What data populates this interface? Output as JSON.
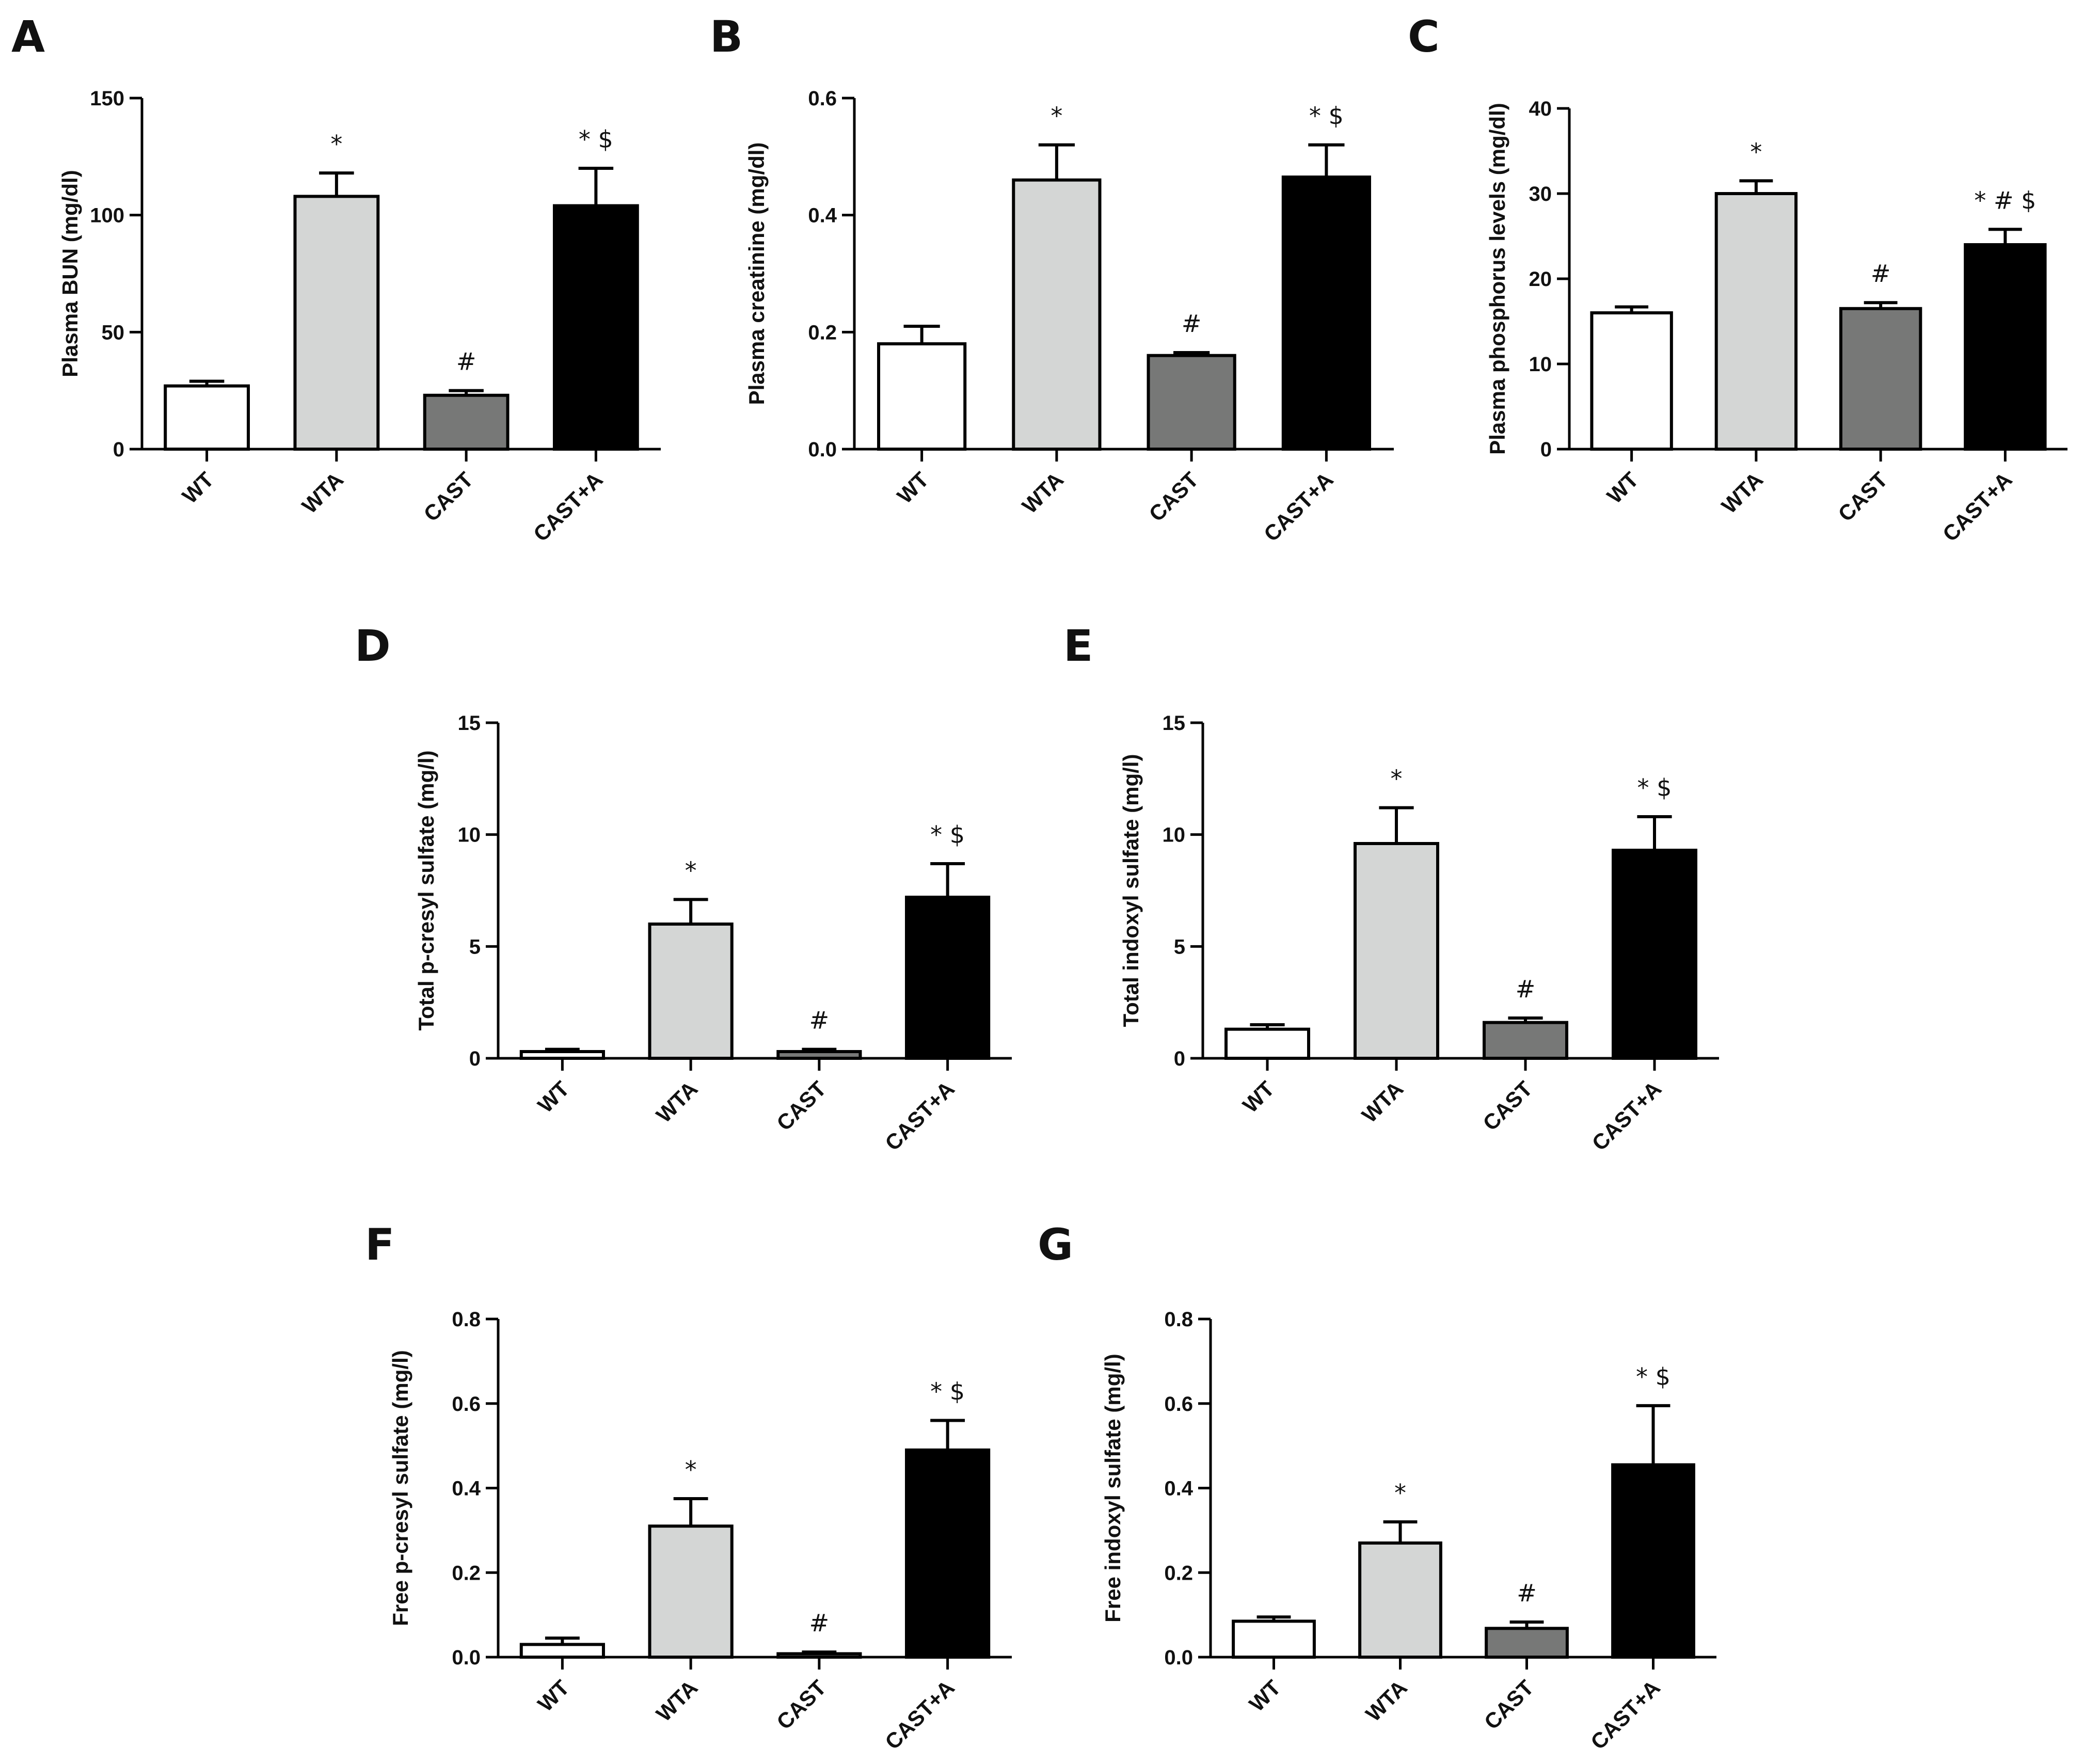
{
  "figure": {
    "background": "#ffffff"
  },
  "categories": [
    "WT",
    "WTA",
    "CAST",
    "CAST+A"
  ],
  "bar_colors": [
    "#ffffff",
    "#d4d6d5",
    "#777877",
    "#000000"
  ],
  "chart_data": [
    {
      "type": "bar",
      "panel": "A",
      "title": "",
      "xlabel": "",
      "ylabel": "Plasma BUN (mg/dl)",
      "ylim": [
        0,
        150
      ],
      "ytick_labels": [
        "0",
        "50",
        "100",
        "150"
      ],
      "categories": [
        "WT",
        "WTA",
        "CAST",
        "CAST+A"
      ],
      "values": [
        27,
        108,
        23,
        104
      ],
      "errors": [
        2,
        10,
        2,
        16
      ],
      "annotations": [
        "",
        "*",
        "#",
        "* $"
      ]
    },
    {
      "type": "bar",
      "panel": "B",
      "title": "",
      "xlabel": "",
      "ylabel": "Plasma creatinine (mg/dl)",
      "ylim": [
        0,
        0.6
      ],
      "ytick_labels": [
        "0.0",
        "0.2",
        "0.4",
        "0.6"
      ],
      "categories": [
        "WT",
        "WTA",
        "CAST",
        "CAST+A"
      ],
      "values": [
        0.18,
        0.46,
        0.16,
        0.465
      ],
      "errors": [
        0.03,
        0.06,
        0.005,
        0.055
      ],
      "annotations": [
        "",
        "*",
        "#",
        "* $"
      ]
    },
    {
      "type": "bar",
      "panel": "C",
      "title": "",
      "xlabel": "",
      "ylabel": "Plasma phosphorus levels (mg/dl)",
      "ylim": [
        0,
        40
      ],
      "ytick_labels": [
        "0",
        "10",
        "20",
        "30",
        "40"
      ],
      "categories": [
        "WT",
        "WTA",
        "CAST",
        "CAST+A"
      ],
      "values": [
        16,
        30,
        16.5,
        24
      ],
      "errors": [
        0.7,
        1.5,
        0.7,
        1.8
      ],
      "annotations": [
        "",
        "*",
        "#",
        "* # $"
      ]
    },
    {
      "type": "bar",
      "panel": "D",
      "title": "",
      "xlabel": "",
      "ylabel": "Total p-cresyl sulfate (mg/l)",
      "ylim": [
        0,
        15
      ],
      "ytick_labels": [
        "0",
        "5",
        "10",
        "15"
      ],
      "categories": [
        "WT",
        "WTA",
        "CAST",
        "CAST+A"
      ],
      "values": [
        0.3,
        6.0,
        0.3,
        7.2
      ],
      "errors": [
        0.1,
        1.1,
        0.1,
        1.5
      ],
      "annotations": [
        "",
        "*",
        "#",
        "* $"
      ]
    },
    {
      "type": "bar",
      "panel": "E",
      "title": "",
      "xlabel": "",
      "ylabel": "Total indoxyl sulfate (mg/l)",
      "ylim": [
        0,
        15
      ],
      "ytick_labels": [
        "0",
        "5",
        "10",
        "15"
      ],
      "categories": [
        "WT",
        "WTA",
        "CAST",
        "CAST+A"
      ],
      "values": [
        1.3,
        9.6,
        1.6,
        9.3
      ],
      "errors": [
        0.2,
        1.6,
        0.2,
        1.5
      ],
      "annotations": [
        "",
        "*",
        "#",
        "* $"
      ]
    },
    {
      "type": "bar",
      "panel": "F",
      "title": "",
      "xlabel": "",
      "ylabel": "Free p-cresyl sulfate (mg/l)",
      "ylim": [
        0,
        0.8
      ],
      "ytick_labels": [
        "0.0",
        "0.2",
        "0.4",
        "0.6",
        "0.8"
      ],
      "categories": [
        "WT",
        "WTA",
        "CAST",
        "CAST+A"
      ],
      "values": [
        0.03,
        0.31,
        0.008,
        0.49
      ],
      "errors": [
        0.015,
        0.065,
        0.004,
        0.07
      ],
      "annotations": [
        "",
        "*",
        "#",
        "* $"
      ]
    },
    {
      "type": "bar",
      "panel": "G",
      "title": "",
      "xlabel": "",
      "ylabel": "Free indoxyl sulfate (mg/l)",
      "ylim": [
        0,
        0.8
      ],
      "ytick_labels": [
        "0.0",
        "0.2",
        "0.4",
        "0.6",
        "0.8"
      ],
      "categories": [
        "WT",
        "WTA",
        "CAST",
        "CAST+A"
      ],
      "values": [
        0.085,
        0.27,
        0.068,
        0.455
      ],
      "errors": [
        0.01,
        0.05,
        0.015,
        0.14
      ],
      "annotations": [
        "",
        "*",
        "#",
        "* $"
      ]
    }
  ]
}
